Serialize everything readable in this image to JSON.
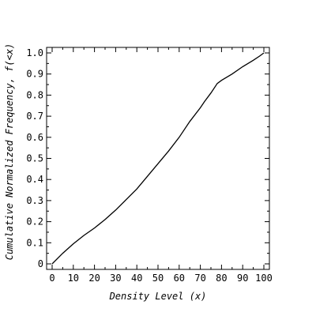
{
  "chart_data": {
    "type": "line",
    "title": "",
    "xlabel": "Density Level (x)",
    "ylabel": "Cumulative Normalized Frequency, f(<x)",
    "xlim": [
      0,
      100
    ],
    "ylim": [
      0,
      1.0
    ],
    "x_ticks": [
      "0",
      "10",
      "20",
      "30",
      "40",
      "50",
      "60",
      "70",
      "80",
      "90",
      "100"
    ],
    "y_ticks": [
      "0",
      "0.1",
      "0.2",
      "0.3",
      "0.4",
      "0.5",
      "0.6",
      "0.7",
      "0.8",
      "0.9",
      "1.0"
    ],
    "grid": false,
    "legend": "none",
    "line_color": "#000000",
    "series": [
      {
        "x": [
          0,
          5,
          10,
          15,
          20,
          25,
          30,
          35,
          40,
          45,
          50,
          55,
          60,
          65,
          70,
          72,
          75,
          78,
          80,
          85,
          90,
          95,
          98,
          100
        ],
        "y": [
          0.0,
          0.05,
          0.095,
          0.135,
          0.17,
          0.21,
          0.255,
          0.305,
          0.355,
          0.415,
          0.475,
          0.535,
          0.6,
          0.675,
          0.74,
          0.77,
          0.81,
          0.855,
          0.87,
          0.9,
          0.935,
          0.965,
          0.985,
          1.0
        ]
      }
    ]
  }
}
